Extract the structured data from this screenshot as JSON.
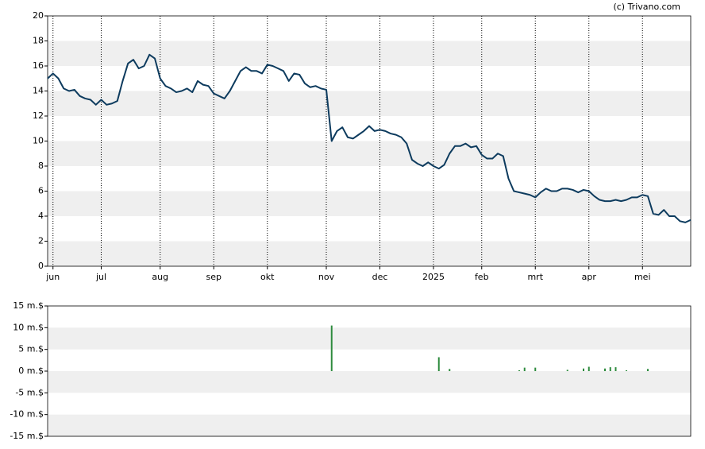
{
  "credit": "(c) Trivano.com",
  "chart_data": [
    {
      "type": "line",
      "color": "#0d3b5e",
      "ylim": [
        0,
        20
      ],
      "yticks": [
        0,
        2,
        4,
        6,
        8,
        10,
        12,
        14,
        16,
        18,
        20
      ],
      "grid": true,
      "categories": [
        null,
        "jun",
        null,
        null,
        null,
        null,
        null,
        null,
        null,
        null,
        "jul",
        null,
        null,
        null,
        null,
        null,
        null,
        null,
        null,
        null,
        null,
        "aug",
        null,
        null,
        null,
        null,
        null,
        null,
        null,
        null,
        null,
        "sep",
        null,
        null,
        null,
        null,
        null,
        null,
        null,
        null,
        null,
        "okt",
        null,
        null,
        null,
        null,
        null,
        null,
        null,
        null,
        null,
        null,
        "nov",
        null,
        null,
        null,
        null,
        null,
        null,
        null,
        null,
        null,
        "dec",
        null,
        null,
        null,
        null,
        null,
        null,
        null,
        null,
        null,
        "2025",
        null,
        null,
        null,
        null,
        null,
        null,
        null,
        null,
        "feb",
        null,
        null,
        null,
        null,
        null,
        null,
        null,
        null,
        null,
        "mrt",
        null,
        null,
        null,
        null,
        null,
        null,
        null,
        null,
        null,
        "apr",
        null,
        null,
        null,
        null,
        null,
        null,
        null,
        null,
        null,
        "mei",
        null,
        null,
        null,
        null,
        null,
        null,
        null,
        null,
        null
      ],
      "values": [
        15.0,
        15.4,
        15.0,
        14.2,
        14.0,
        14.1,
        13.6,
        13.4,
        13.3,
        12.9,
        13.3,
        12.9,
        13.0,
        13.2,
        14.8,
        16.2,
        16.5,
        15.8,
        16.0,
        16.9,
        16.6,
        15.0,
        14.4,
        14.2,
        13.9,
        14.0,
        14.2,
        13.9,
        14.8,
        14.5,
        14.4,
        13.8,
        13.6,
        13.4,
        14.0,
        14.8,
        15.6,
        15.9,
        15.6,
        15.6,
        15.4,
        16.1,
        16.0,
        15.8,
        15.6,
        14.8,
        15.4,
        15.3,
        14.6,
        14.3,
        14.4,
        14.2,
        14.1,
        10.0,
        10.8,
        11.1,
        10.3,
        10.2,
        10.5,
        10.8,
        11.2,
        10.8,
        10.9,
        10.8,
        10.6,
        10.5,
        10.3,
        9.8,
        8.5,
        8.2,
        8.0,
        8.3,
        8.0,
        7.8,
        8.1,
        9.0,
        9.6,
        9.6,
        9.8,
        9.5,
        9.6,
        8.9,
        8.6,
        8.6,
        9.0,
        8.8,
        7.0,
        6.0,
        5.9,
        5.8,
        5.7,
        5.5,
        5.9,
        6.2,
        6.0,
        6.0,
        6.2,
        6.2,
        6.1,
        5.9,
        6.1,
        6.0,
        5.6,
        5.3,
        5.2,
        5.2,
        5.3,
        5.2,
        5.3,
        5.5,
        5.5,
        5.7,
        5.6,
        4.2,
        4.1,
        4.5,
        4.0,
        4.0,
        3.6,
        3.5,
        3.7
      ]
    },
    {
      "type": "bar",
      "color": "#2e8b3e",
      "ylim": [
        -15,
        15
      ],
      "grid": true,
      "yticks": [
        {
          "value": -15,
          "label": "-15 m.$"
        },
        {
          "value": -10,
          "label": "-10 m.$"
        },
        {
          "value": -5,
          "label": "-5 m.$"
        },
        {
          "value": 0,
          "label": "0 m.$"
        },
        {
          "value": 5,
          "label": "5 m.$"
        },
        {
          "value": 10,
          "label": "10 m.$"
        },
        {
          "value": 15,
          "label": "15 m.$"
        }
      ],
      "values": [
        null,
        null,
        null,
        null,
        null,
        null,
        null,
        null,
        null,
        null,
        null,
        null,
        null,
        null,
        null,
        null,
        null,
        null,
        null,
        null,
        null,
        null,
        null,
        null,
        null,
        null,
        null,
        null,
        null,
        null,
        null,
        null,
        null,
        null,
        null,
        null,
        null,
        null,
        null,
        null,
        null,
        null,
        null,
        null,
        null,
        null,
        null,
        null,
        null,
        null,
        null,
        null,
        null,
        10.5,
        null,
        null,
        null,
        null,
        null,
        null,
        null,
        null,
        null,
        null,
        null,
        null,
        null,
        null,
        null,
        null,
        null,
        null,
        null,
        3.2,
        null,
        0.5,
        null,
        null,
        null,
        null,
        null,
        null,
        null,
        null,
        null,
        null,
        null,
        null,
        0.2,
        0.8,
        null,
        0.8,
        null,
        null,
        null,
        null,
        null,
        0.3,
        null,
        null,
        0.6,
        1.0,
        null,
        null,
        0.6,
        0.9,
        0.9,
        null,
        0.2,
        null,
        null,
        null,
        0.5,
        null,
        null,
        null,
        null,
        null,
        null,
        null,
        null
      ]
    }
  ]
}
